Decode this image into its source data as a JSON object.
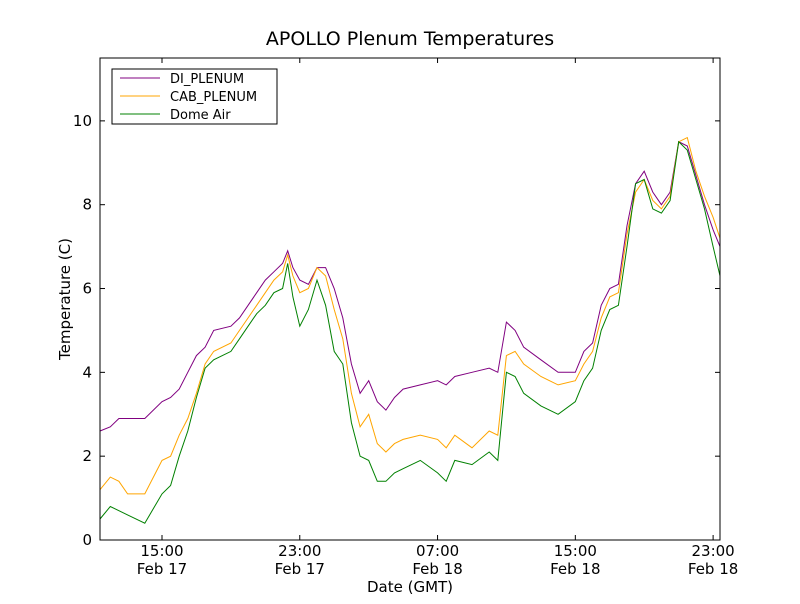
{
  "chart_data": {
    "type": "line",
    "title": "APOLLO Plenum Temperatures",
    "xlabel": "Date (GMT)",
    "ylabel": "Temperature (C)",
    "x_units": "hours since Feb 17 00:00 GMT",
    "xlim": [
      11.4,
      47.4
    ],
    "ylim": [
      0,
      11.5
    ],
    "grid": false,
    "legend_position": "top-left",
    "x_ticks": [
      {
        "value": 15,
        "time": "15:00",
        "date": "Feb 17"
      },
      {
        "value": 23,
        "time": "23:00",
        "date": "Feb 17"
      },
      {
        "value": 31,
        "time": "07:00",
        "date": "Feb 18"
      },
      {
        "value": 39,
        "time": "15:00",
        "date": "Feb 18"
      },
      {
        "value": 47,
        "time": "23:00",
        "date": "Feb 18"
      }
    ],
    "y_ticks": [
      0,
      2,
      4,
      6,
      8,
      10
    ],
    "x": [
      11.4,
      12,
      12.5,
      13,
      14,
      15,
      15.5,
      16,
      16.5,
      17,
      17.5,
      18,
      19,
      19.5,
      20,
      20.5,
      21,
      21.5,
      22,
      22.3,
      22.6,
      23,
      23.5,
      24,
      24.5,
      25,
      25.5,
      26,
      26.5,
      27,
      27.5,
      28,
      28.5,
      29,
      30,
      31,
      31.5,
      32,
      33,
      34,
      34.5,
      35,
      35.5,
      36,
      37,
      38,
      39,
      39.5,
      40,
      40.5,
      41,
      41.5,
      42,
      42.5,
      43,
      43.5,
      44,
      44.5,
      45,
      45.5,
      46,
      46.5,
      47,
      47.4
    ],
    "series": [
      {
        "name": "DI_PLENUM",
        "color": "#800080",
        "values": [
          2.6,
          2.7,
          2.9,
          2.9,
          2.9,
          3.3,
          3.4,
          3.6,
          4.0,
          4.4,
          4.6,
          5.0,
          5.1,
          5.3,
          5.6,
          5.9,
          6.2,
          6.4,
          6.6,
          6.9,
          6.5,
          6.2,
          6.1,
          6.5,
          6.5,
          6.0,
          5.3,
          4.2,
          3.5,
          3.8,
          3.3,
          3.1,
          3.4,
          3.6,
          3.7,
          3.8,
          3.7,
          3.9,
          4.0,
          4.1,
          4.0,
          5.2,
          5.0,
          4.6,
          4.3,
          4.0,
          4.0,
          4.5,
          4.7,
          5.6,
          6.0,
          6.1,
          7.5,
          8.5,
          8.8,
          8.3,
          8.0,
          8.3,
          9.5,
          9.4,
          8.7,
          8.0,
          7.4,
          7.0
        ]
      },
      {
        "name": "CAB_PLENUM",
        "color": "#ffa500",
        "values": [
          1.2,
          1.5,
          1.4,
          1.1,
          1.1,
          1.9,
          2.0,
          2.5,
          2.9,
          3.5,
          4.2,
          4.5,
          4.7,
          5.0,
          5.3,
          5.6,
          5.9,
          6.2,
          6.4,
          6.8,
          6.3,
          5.9,
          6.0,
          6.5,
          6.3,
          5.5,
          4.8,
          3.5,
          2.7,
          3.0,
          2.3,
          2.1,
          2.3,
          2.4,
          2.5,
          2.4,
          2.2,
          2.5,
          2.2,
          2.6,
          2.5,
          4.4,
          4.5,
          4.2,
          3.9,
          3.7,
          3.8,
          4.2,
          4.5,
          5.3,
          5.8,
          5.9,
          7.3,
          8.3,
          8.6,
          8.1,
          7.9,
          8.2,
          9.5,
          9.6,
          8.8,
          8.2,
          7.7,
          7.2
        ]
      },
      {
        "name": "Dome Air",
        "color": "#008000",
        "values": [
          0.5,
          0.8,
          0.7,
          0.6,
          0.4,
          1.1,
          1.3,
          2.0,
          2.6,
          3.4,
          4.1,
          4.3,
          4.5,
          4.8,
          5.1,
          5.4,
          5.6,
          5.9,
          6.0,
          6.6,
          5.8,
          5.1,
          5.5,
          6.2,
          5.6,
          4.5,
          4.2,
          2.8,
          2.0,
          1.9,
          1.4,
          1.4,
          1.6,
          1.7,
          1.9,
          1.6,
          1.4,
          1.9,
          1.8,
          2.1,
          1.9,
          4.0,
          3.9,
          3.5,
          3.2,
          3.0,
          3.3,
          3.8,
          4.1,
          5.0,
          5.5,
          5.6,
          7.0,
          8.5,
          8.6,
          7.9,
          7.8,
          8.1,
          9.5,
          9.3,
          8.6,
          7.9,
          7.0,
          6.3
        ]
      }
    ]
  }
}
